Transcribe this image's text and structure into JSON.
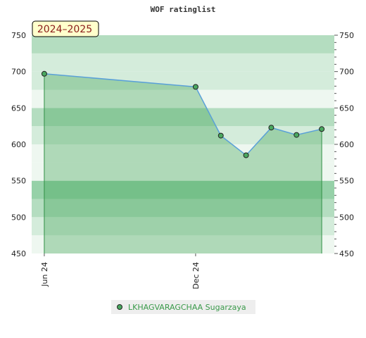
{
  "chart_data": {
    "type": "area",
    "title": "WOF ratinglist",
    "season_label": "2024–2025",
    "ylim": [
      450,
      750
    ],
    "y_ticks": [
      450,
      500,
      550,
      600,
      650,
      700,
      750
    ],
    "x_ticks": [
      {
        "label": "Jun 24",
        "index": 0
      },
      {
        "label": "Dec 24",
        "index": 6
      }
    ],
    "x_range": [
      -0.5,
      11.5
    ],
    "series": [
      {
        "name": "LKHAGVARAGCHAA Sugarzaya",
        "x": [
          0,
          6,
          7,
          8,
          9,
          10,
          11
        ],
        "values": [
          697,
          679,
          612,
          585,
          623,
          613,
          621
        ]
      }
    ],
    "legend_position": "bottom",
    "colors": {
      "band_dark": "#7cc593",
      "band_mid": "#96d1a8",
      "band_light": "#b4ddc0",
      "band_lighter": "#d4ecdb",
      "band_white": "#eef7f0",
      "area_fill": "#3aa050",
      "line": "#5aa0d8",
      "marker_fill": "#4aa860",
      "season_bg": "#ffffcc"
    }
  }
}
